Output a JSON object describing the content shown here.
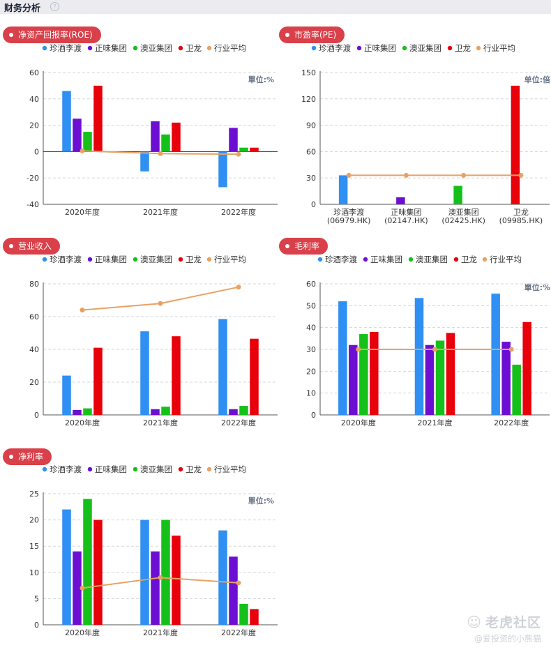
{
  "header": {
    "title": "财务分析",
    "help_icon": "question-circle-icon"
  },
  "colors": {
    "珍酒李渡": "#2f8ff2",
    "正味集团": "#6d0fd2",
    "澳亚集团": "#16c01a",
    "卫龙": "#e8000b",
    "行业平均": "#e7a263"
  },
  "legend": [
    "珍酒李渡",
    "正味集团",
    "澳亚集团",
    "卫龙",
    "行业平均"
  ],
  "chart_data": [
    {
      "id": "roe",
      "type": "bar",
      "title": "净资产回报率(ROE)",
      "unit": "單位:%",
      "categories": [
        "2020年度",
        "2021年度",
        "2022年度"
      ],
      "ylim": [
        -40,
        60
      ],
      "yticks": [
        -40,
        -20,
        0,
        20,
        40,
        60
      ],
      "grid": true,
      "series": [
        {
          "name": "珍酒李渡",
          "values": [
            46,
            -15,
            -27
          ]
        },
        {
          "name": "正味集团",
          "values": [
            25,
            23,
            18
          ]
        },
        {
          "name": "澳亚集团",
          "values": [
            15,
            13,
            3
          ]
        },
        {
          "name": "卫龙",
          "values": [
            50,
            22,
            3
          ]
        }
      ],
      "line": {
        "name": "行业平均",
        "values": [
          0.5,
          -1.5,
          -2
        ]
      }
    },
    {
      "id": "pe",
      "type": "bar",
      "title": "市盈率(PE)",
      "unit": "单位:倍",
      "categories": [
        "珍酒李渡\n(06979.HK)",
        "正味集团\n(02147.HK)",
        "澳亚集团\n(02425.HK)",
        "卫龙\n(09985.HK)"
      ],
      "ylim": [
        0,
        150
      ],
      "yticks": [
        0,
        30,
        60,
        90,
        120,
        150
      ],
      "grid": true,
      "series": [
        {
          "name": "珍酒李渡",
          "values": [
            33,
            null,
            null,
            null
          ]
        },
        {
          "name": "正味集团",
          "values": [
            null,
            8,
            null,
            null
          ]
        },
        {
          "name": "澳亚集团",
          "values": [
            null,
            null,
            21,
            null
          ]
        },
        {
          "name": "卫龙",
          "values": [
            null,
            null,
            null,
            135
          ]
        }
      ],
      "line": {
        "name": "行业平均",
        "values": [
          33,
          33,
          33,
          33
        ]
      }
    },
    {
      "id": "revenue",
      "type": "bar",
      "title": "营业收入",
      "unit": "",
      "categories": [
        "2020年度",
        "2021年度",
        "2022年度"
      ],
      "ylim": [
        0,
        80
      ],
      "yticks": [
        0,
        20,
        40,
        60,
        80
      ],
      "grid": true,
      "series": [
        {
          "name": "珍酒李渡",
          "values": [
            24,
            51,
            58.5
          ]
        },
        {
          "name": "正味集团",
          "values": [
            3,
            3.5,
            3.5
          ]
        },
        {
          "name": "澳亚集团",
          "values": [
            4,
            5,
            5.5
          ]
        },
        {
          "name": "卫龙",
          "values": [
            41,
            48,
            46.5
          ]
        }
      ],
      "line": {
        "name": "行业平均",
        "values": [
          64,
          68,
          78
        ]
      }
    },
    {
      "id": "gross_margin",
      "type": "bar",
      "title": "毛利率",
      "unit": "單位:%",
      "categories": [
        "2020年度",
        "2021年度",
        "2022年度"
      ],
      "ylim": [
        0,
        60
      ],
      "yticks": [
        0,
        10,
        20,
        30,
        40,
        50,
        60
      ],
      "grid": true,
      "series": [
        {
          "name": "珍酒李渡",
          "values": [
            52,
            53.5,
            55.5
          ]
        },
        {
          "name": "正味集团",
          "values": [
            32,
            32,
            33.5
          ]
        },
        {
          "name": "澳亚集团",
          "values": [
            37,
            34,
            23
          ]
        },
        {
          "name": "卫龙",
          "values": [
            38,
            37.5,
            42.5
          ]
        }
      ],
      "line": {
        "name": "行业平均",
        "values": [
          30,
          30,
          30
        ]
      }
    },
    {
      "id": "net_margin",
      "type": "bar",
      "title": "净利率",
      "unit": "單位:%",
      "categories": [
        "2020年度",
        "2021年度",
        "2022年度"
      ],
      "ylim": [
        0,
        25
      ],
      "yticks": [
        0,
        5,
        10,
        15,
        20,
        25
      ],
      "grid": true,
      "series": [
        {
          "name": "珍酒李渡",
          "values": [
            22,
            20,
            18
          ]
        },
        {
          "name": "正味集团",
          "values": [
            14,
            14,
            13
          ]
        },
        {
          "name": "澳亚集团",
          "values": [
            24,
            20,
            4
          ]
        },
        {
          "name": "卫龙",
          "values": [
            20,
            17,
            3
          ]
        }
      ],
      "line": {
        "name": "行业平均",
        "values": [
          7,
          9,
          8
        ]
      }
    }
  ],
  "watermark": {
    "brand": "老虎社区",
    "user": "@爱投资的小熊猫",
    "logo_icon": "tiger-logo-icon"
  }
}
